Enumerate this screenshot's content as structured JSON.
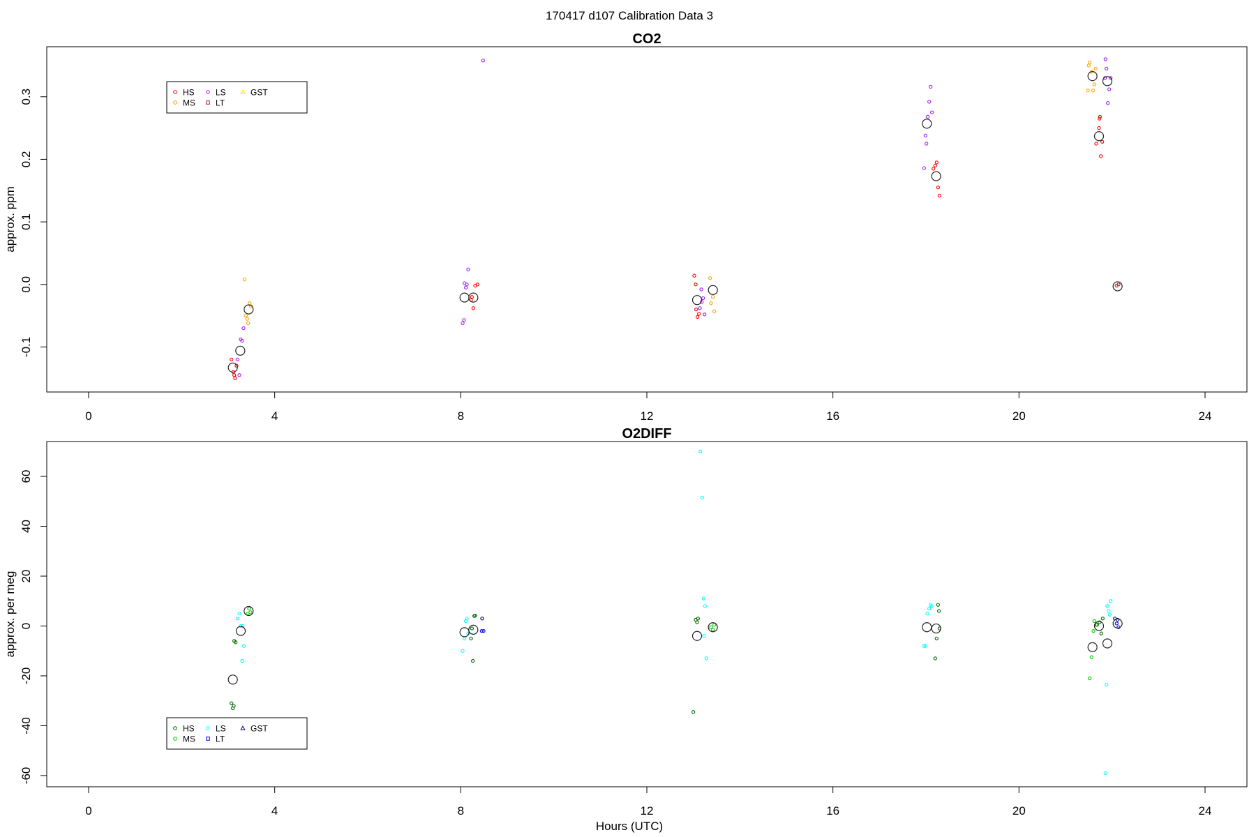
{
  "figure": {
    "title": "170417   d107   Calibration Data 3",
    "xlabel": "Hours (UTC)"
  },
  "chart_data": [
    {
      "type": "scatter",
      "title": "CO2",
      "xlabel": "",
      "ylabel": "approx. ppm",
      "xlim": [
        -0.9,
        24.9
      ],
      "ylim": [
        -0.172,
        0.38
      ],
      "xticks": [
        0,
        4,
        8,
        12,
        16,
        20,
        24
      ],
      "yticks": [
        -0.1,
        0.0,
        0.1,
        0.2,
        0.3
      ],
      "ytick_labels": [
        "-0.1",
        "0.0",
        "0.1",
        "0.2",
        "0.3"
      ],
      "legend_position": "top-left",
      "legend": [
        {
          "label": "HS",
          "color": "#ff0000",
          "marker": "circle"
        },
        {
          "label": "MS",
          "color": "#ffa500",
          "marker": "circle"
        },
        {
          "label": "LS",
          "color": "#a020f0",
          "marker": "circle"
        },
        {
          "label": "LT",
          "color": "#b22222",
          "marker": "square"
        },
        {
          "label": "GST",
          "color": "#ffd700",
          "marker": "triangle"
        }
      ],
      "series": [
        {
          "name": "HS",
          "color": "#ff0000",
          "points": [
            [
              3.07,
              -0.12
            ],
            [
              3.11,
              -0.14
            ],
            [
              3.15,
              -0.15
            ],
            [
              3.18,
              -0.13
            ],
            [
              3.13,
              -0.145
            ],
            [
              8.22,
              -0.025
            ],
            [
              8.27,
              -0.038
            ],
            [
              8.31,
              -0.002
            ],
            [
              8.36,
              0.0
            ],
            [
              8.24,
              -0.02
            ],
            [
              13.02,
              0.014
            ],
            [
              13.05,
              0.0
            ],
            [
              13.09,
              -0.052
            ],
            [
              13.06,
              -0.04
            ],
            [
              13.12,
              -0.047
            ],
            [
              18.16,
              0.185
            ],
            [
              18.2,
              0.19
            ],
            [
              18.23,
              0.195
            ],
            [
              18.26,
              0.155
            ],
            [
              18.29,
              0.142
            ],
            [
              21.66,
              0.225
            ],
            [
              21.72,
              0.25
            ],
            [
              21.76,
              0.205
            ],
            [
              21.79,
              0.228
            ],
            [
              21.73,
              0.265
            ],
            [
              21.74,
              0.268
            ]
          ]
        },
        {
          "name": "MS",
          "color": "#ffa500",
          "points": [
            [
              3.35,
              0.008
            ],
            [
              3.38,
              -0.05
            ],
            [
              3.43,
              -0.062
            ],
            [
              3.46,
              -0.03
            ],
            [
              3.49,
              -0.035
            ],
            [
              3.41,
              -0.055
            ],
            [
              13.36,
              0.01
            ],
            [
              13.42,
              -0.02
            ],
            [
              13.45,
              -0.043
            ],
            [
              13.38,
              -0.03
            ],
            [
              21.5,
              0.35
            ],
            [
              21.52,
              0.355
            ],
            [
              21.56,
              0.34
            ],
            [
              21.59,
              0.31
            ],
            [
              21.62,
              0.32
            ],
            [
              21.48,
              0.31
            ],
            [
              21.65,
              0.345
            ]
          ]
        },
        {
          "name": "LS",
          "color": "#a020f0",
          "points": [
            [
              3.2,
              -0.12
            ],
            [
              3.24,
              -0.145
            ],
            [
              3.3,
              -0.09
            ],
            [
              3.33,
              -0.07
            ],
            [
              3.27,
              -0.088
            ],
            [
              8.04,
              -0.062
            ],
            [
              8.07,
              -0.057
            ],
            [
              8.11,
              -0.005
            ],
            [
              8.13,
              0.0
            ],
            [
              8.16,
              0.024
            ],
            [
              8.08,
              0.002
            ],
            [
              8.48,
              0.358
            ],
            [
              13.14,
              -0.038
            ],
            [
              13.18,
              -0.028
            ],
            [
              13.21,
              -0.022
            ],
            [
              13.24,
              -0.048
            ],
            [
              13.17,
              -0.008
            ],
            [
              17.96,
              0.186
            ],
            [
              18.01,
              0.225
            ],
            [
              18.04,
              0.268
            ],
            [
              18.07,
              0.292
            ],
            [
              18.1,
              0.316
            ],
            [
              18.13,
              0.275
            ],
            [
              17.99,
              0.238
            ],
            [
              21.86,
              0.36
            ],
            [
              21.88,
              0.345
            ],
            [
              21.91,
              0.29
            ],
            [
              21.94,
              0.312
            ],
            [
              21.97,
              0.33
            ],
            [
              21.85,
              0.33
            ]
          ]
        },
        {
          "name": "LT",
          "color": "#b22222",
          "points": [
            [
              22.1,
              -0.002
            ],
            [
              22.14,
              0.0
            ]
          ]
        },
        {
          "name": "GST",
          "color": "#ffd700",
          "points": []
        }
      ],
      "means": [
        [
          3.1,
          -0.133
        ],
        [
          3.26,
          -0.106
        ],
        [
          3.44,
          -0.04
        ],
        [
          8.08,
          -0.021
        ],
        [
          8.27,
          -0.021
        ],
        [
          13.08,
          -0.025
        ],
        [
          13.42,
          -0.009
        ],
        [
          18.02,
          0.257
        ],
        [
          18.22,
          0.173
        ],
        [
          21.58,
          0.333
        ],
        [
          21.72,
          0.237
        ],
        [
          21.9,
          0.325
        ],
        [
          22.12,
          -0.003
        ]
      ]
    },
    {
      "type": "scatter",
      "title": "O2DIFF",
      "xlabel": "Hours (UTC)",
      "ylabel": "approx. per meg",
      "xlim": [
        -0.9,
        24.9
      ],
      "ylim": [
        -64.5,
        74
      ],
      "xticks": [
        0,
        4,
        8,
        12,
        16,
        20,
        24
      ],
      "yticks": [
        -60,
        -40,
        -20,
        0,
        20,
        40,
        60
      ],
      "ytick_labels": [
        "-60",
        "-40",
        "-20",
        "0",
        "20",
        "40",
        "60"
      ],
      "legend_position": "bottom-left",
      "legend": [
        {
          "label": "HS",
          "color": "#006400",
          "marker": "circle"
        },
        {
          "label": "MS",
          "color": "#00cc00",
          "marker": "circle"
        },
        {
          "label": "LS",
          "color": "#00ffff",
          "marker": "circle"
        },
        {
          "label": "LT",
          "color": "#0000ff",
          "marker": "square"
        },
        {
          "label": "GST",
          "color": "#00008b",
          "marker": "triangle"
        }
      ],
      "series": [
        {
          "name": "HS",
          "color": "#006400",
          "points": [
            [
              3.07,
              -31
            ],
            [
              3.1,
              -33
            ],
            [
              3.13,
              -6
            ],
            [
              3.16,
              -6.5
            ],
            [
              3.12,
              -32
            ],
            [
              8.22,
              -5
            ],
            [
              8.26,
              -14
            ],
            [
              8.29,
              4
            ],
            [
              8.31,
              4.2
            ],
            [
              8.24,
              -1
            ],
            [
              13.0,
              -34.5
            ],
            [
              13.05,
              2.5
            ],
            [
              13.08,
              1.5
            ],
            [
              13.1,
              3
            ],
            [
              18.2,
              -13
            ],
            [
              18.23,
              -5
            ],
            [
              18.26,
              8.5
            ],
            [
              18.28,
              6
            ],
            [
              18.29,
              -1
            ],
            [
              21.73,
              1.5
            ],
            [
              21.77,
              -3
            ],
            [
              21.8,
              3
            ],
            [
              21.68,
              0.5
            ]
          ]
        },
        {
          "name": "MS",
          "color": "#00cc00",
          "points": [
            [
              3.42,
              5
            ],
            [
              3.45,
              7
            ],
            [
              3.48,
              5.5
            ],
            [
              13.38,
              -0.5
            ],
            [
              13.42,
              -1.5
            ],
            [
              13.45,
              0.5
            ],
            [
              21.52,
              -21
            ],
            [
              21.56,
              -12.5
            ],
            [
              21.6,
              -2
            ],
            [
              21.62,
              2
            ],
            [
              21.66,
              0.5
            ]
          ]
        },
        {
          "name": "LS",
          "color": "#00ffff",
          "points": [
            [
              3.2,
              3
            ],
            [
              3.24,
              5
            ],
            [
              3.27,
              0
            ],
            [
              3.3,
              -14
            ],
            [
              3.34,
              -8
            ],
            [
              3.31,
              0
            ],
            [
              8.04,
              -10
            ],
            [
              8.08,
              -5
            ],
            [
              8.11,
              2
            ],
            [
              8.13,
              3
            ],
            [
              8.16,
              -3
            ],
            [
              13.15,
              70
            ],
            [
              13.19,
              51.5
            ],
            [
              13.22,
              11
            ],
            [
              13.25,
              8
            ],
            [
              13.28,
              -13
            ],
            [
              13.23,
              -4
            ],
            [
              17.96,
              -8
            ],
            [
              17.99,
              -8
            ],
            [
              18.03,
              5
            ],
            [
              18.07,
              7
            ],
            [
              18.1,
              8.5
            ],
            [
              18.12,
              8
            ],
            [
              21.86,
              -59
            ],
            [
              21.88,
              -23.5
            ],
            [
              21.9,
              8
            ],
            [
              21.93,
              6
            ],
            [
              21.97,
              10
            ],
            [
              21.95,
              4.5
            ]
          ]
        },
        {
          "name": "LT",
          "color": "#0000ff",
          "points": [
            [
              8.45,
              -2
            ],
            [
              8.49,
              -2
            ],
            [
              22.1,
              1
            ],
            [
              22.14,
              -0.5
            ]
          ]
        },
        {
          "name": "GST",
          "color": "#00008b",
          "points": [
            [
              8.46,
              3
            ],
            [
              22.06,
              3
            ],
            [
              22.12,
              2.5
            ]
          ]
        }
      ],
      "means": [
        [
          3.1,
          -21.5
        ],
        [
          3.27,
          -2
        ],
        [
          3.44,
          6
        ],
        [
          8.08,
          -2.5
        ],
        [
          8.27,
          -1.5
        ],
        [
          13.08,
          -4
        ],
        [
          13.42,
          -0.5
        ],
        [
          18.02,
          -0.5
        ],
        [
          18.22,
          -1
        ],
        [
          21.58,
          -8.5
        ],
        [
          21.72,
          0
        ],
        [
          21.9,
          -7
        ],
        [
          22.12,
          1
        ]
      ]
    }
  ]
}
